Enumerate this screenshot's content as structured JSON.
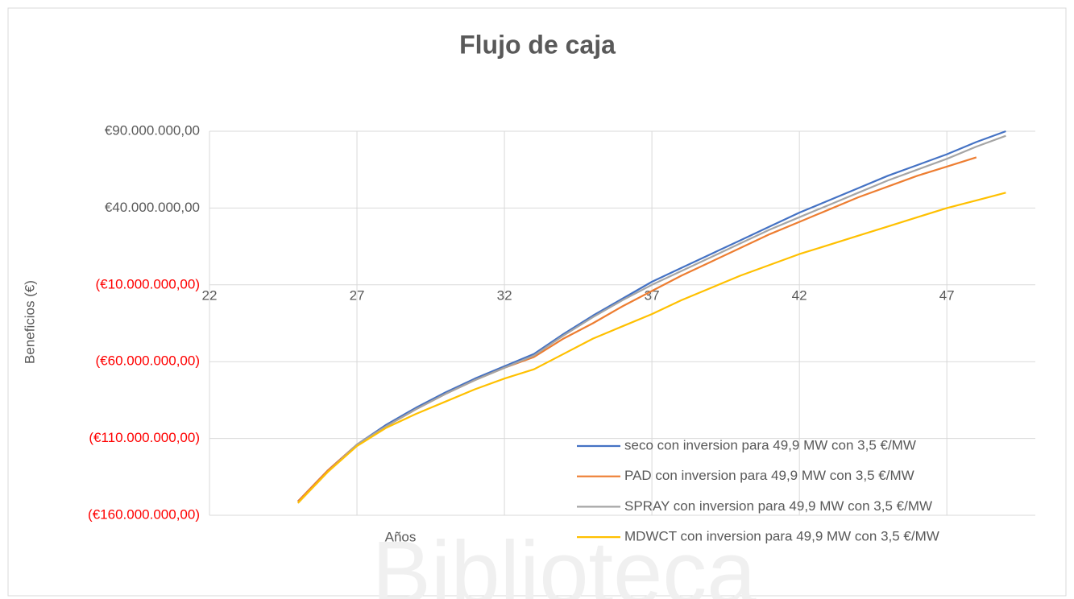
{
  "chart_data": {
    "type": "line",
    "title": "Flujo de caja",
    "xlabel": "Años",
    "ylabel": "Beneficios (€)",
    "watermark": "Biblioteca",
    "x": [
      25,
      26,
      27,
      28,
      29,
      30,
      31,
      32,
      33,
      34,
      35,
      36,
      37,
      38,
      39,
      40,
      41,
      42,
      43,
      44,
      45,
      46,
      47,
      48,
      49
    ],
    "series": [
      {
        "name": "seco con inversion para 49,9 MW con 3,5 €/MW",
        "color": "#4472c4",
        "values": [
          -151000000,
          -131000000,
          -114000000,
          -101000000,
          -90000000,
          -80000000,
          -71000000,
          -63000000,
          -55000000,
          -42000000,
          -30000000,
          -19000000,
          -8000000,
          1000000,
          10000000,
          19000000,
          28000000,
          37000000,
          45000000,
          53000000,
          61000000,
          68000000,
          75000000,
          83000000,
          90000000
        ]
      },
      {
        "name": "PAD con inversion para 49,9 MW con 3,5 €/MW",
        "color": "#ed7d31",
        "values": [
          -151000000,
          -131000000,
          -114000000,
          -102000000,
          -91000000,
          -81000000,
          -72000000,
          -64000000,
          -57000000,
          -45000000,
          -35000000,
          -24000000,
          -14000000,
          -4000000,
          5000000,
          14000000,
          23000000,
          31000000,
          39000000,
          47000000,
          54000000,
          61000000,
          67000000,
          73000000,
          null
        ]
      },
      {
        "name": "SPRAY con inversion para 49,9 MW con 3,5 €/MW",
        "color": "#a5a5a5",
        "values": [
          -152000000,
          -132000000,
          -114000000,
          -102000000,
          -91000000,
          -81000000,
          -72000000,
          -64000000,
          -56000000,
          -43000000,
          -31000000,
          -20000000,
          -10000000,
          -1000000,
          8000000,
          17000000,
          26000000,
          34000000,
          42000000,
          50000000,
          58000000,
          65000000,
          72000000,
          80000000,
          87000000
        ]
      },
      {
        "name": "MDWCT con inversion para 49,9 MW con 3,5 €/MW",
        "color": "#ffc000",
        "values": [
          -152000000,
          -132000000,
          -115000000,
          -103000000,
          -94000000,
          -86000000,
          -78000000,
          -71000000,
          -65000000,
          -55000000,
          -45000000,
          -37000000,
          -29000000,
          -20000000,
          -12000000,
          -4000000,
          3000000,
          10000000,
          16000000,
          22000000,
          28000000,
          34000000,
          40000000,
          45000000,
          50000000
        ]
      }
    ],
    "xlim": [
      22,
      50
    ],
    "xticks": [
      22,
      27,
      32,
      37,
      42,
      47
    ],
    "ylim": [
      -160000000,
      90000000
    ],
    "yticks": [
      {
        "value": -160000000,
        "label": "(€160.000.000,00)"
      },
      {
        "value": -110000000,
        "label": "(€110.000.000,00)"
      },
      {
        "value": -60000000,
        "label": "(€60.000.000,00)"
      },
      {
        "value": -10000000,
        "label": "(€10.000.000,00)"
      },
      {
        "value": 40000000,
        "label": "€40.000.000,00"
      },
      {
        "value": 90000000,
        "label": "€90.000.000,00"
      }
    ],
    "negative_label_color": "#ff0000",
    "grid": true,
    "legend": "lower right"
  }
}
